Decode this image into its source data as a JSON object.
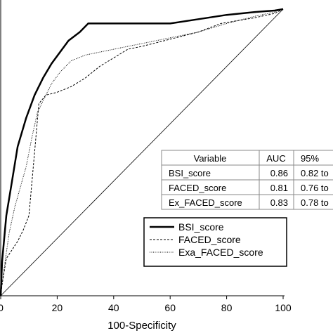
{
  "chart_data": {
    "type": "line",
    "xlabel": "100-Specificity",
    "ylabel": "",
    "xlim": [
      0,
      100
    ],
    "ylim": [
      0,
      100
    ],
    "x_ticks": [
      "0",
      "20",
      "40",
      "60",
      "80",
      "100"
    ],
    "grid": false,
    "series": [
      {
        "name": "BSI_score",
        "style": "solid-thick",
        "x": [
          0,
          0.5,
          2,
          4,
          6,
          9,
          12,
          15,
          18,
          21,
          24,
          28,
          31,
          40,
          50,
          60,
          70,
          80,
          90,
          97,
          100
        ],
        "y": [
          0,
          12,
          28,
          40,
          52,
          62,
          70,
          76,
          81,
          85,
          89,
          92,
          95,
          95,
          95,
          95,
          96.5,
          98,
          99,
          99.5,
          100
        ]
      },
      {
        "name": "FACED_score",
        "style": "dashed",
        "x": [
          0,
          0.5,
          2,
          4,
          6,
          8,
          10,
          12,
          13.5,
          16,
          20,
          25,
          30,
          35,
          40,
          45,
          50,
          60,
          70,
          78,
          90,
          97,
          100
        ],
        "y": [
          0,
          4,
          13,
          16,
          19,
          23,
          28,
          50,
          67,
          70,
          71,
          73,
          76,
          80,
          83,
          86,
          87,
          89.5,
          92,
          95,
          97,
          98.5,
          100
        ]
      },
      {
        "name": "Exa_FACED_score",
        "style": "dotted",
        "x": [
          0,
          1,
          3,
          5,
          7,
          9,
          11,
          13,
          15,
          18,
          21,
          25,
          30,
          35,
          40,
          45,
          50,
          60,
          70,
          80,
          90,
          97,
          100
        ],
        "y": [
          0,
          8,
          22,
          31,
          38,
          45,
          55,
          64,
          68,
          74,
          78,
          82,
          84,
          85,
          86,
          87,
          88,
          90,
          92,
          95,
          97.5,
          99,
          100
        ]
      }
    ],
    "reference_line": {
      "style": "thin-solid",
      "from": [
        0,
        0
      ],
      "to": [
        100,
        100
      ]
    },
    "legend": {
      "placement": "bottom-right",
      "entries": [
        "BSI_score",
        "FACED_score",
        "Exa_FACED_score"
      ]
    },
    "table": {
      "placement": "middle-right",
      "headers": [
        "Variable",
        "AUC",
        "95%"
      ],
      "rows": [
        [
          "BSI_score",
          "0.86",
          "0.82 to"
        ],
        [
          "FACED_score",
          "0.81",
          "0.76 to"
        ],
        [
          "Ex_FACED_score",
          "0.83",
          "0.78 to"
        ]
      ]
    }
  }
}
